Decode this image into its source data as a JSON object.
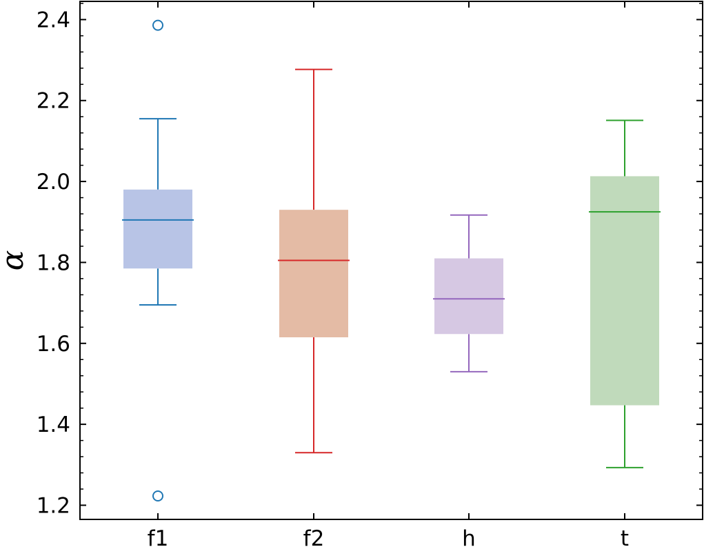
{
  "chart_data": {
    "type": "box",
    "ylabel": "α",
    "xlabel": "",
    "ylim": [
      1.165,
      2.445
    ],
    "y_ticks": [
      "1.2",
      "1.4",
      "1.6",
      "1.8",
      "2.0",
      "2.2",
      "2.4"
    ],
    "y_minor_step": 0.04,
    "grid": false,
    "categories": [
      "f1",
      "f2",
      "h",
      "t"
    ],
    "boxes": [
      {
        "category": "f1",
        "whisker_low": 1.695,
        "q1": 1.785,
        "median": 1.905,
        "q3": 1.98,
        "whisker_high": 2.155,
        "outliers": [
          2.386,
          1.223
        ],
        "color": "#1f77b4",
        "fill": "#b8c4e6"
      },
      {
        "category": "f2",
        "whisker_low": 1.33,
        "q1": 1.615,
        "median": 1.805,
        "q3": 1.93,
        "whisker_high": 2.277,
        "outliers": [],
        "color": "#d62728",
        "fill": "#e4bba5"
      },
      {
        "category": "h",
        "whisker_low": 1.53,
        "q1": 1.623,
        "median": 1.71,
        "q3": 1.81,
        "whisker_high": 1.917,
        "outliers": [],
        "color": "#9467bd",
        "fill": "#d6c8e3"
      },
      {
        "category": "t",
        "whisker_low": 1.293,
        "q1": 1.447,
        "median": 1.925,
        "q3": 2.013,
        "whisker_high": 2.151,
        "outliers": [],
        "color": "#2ca02c",
        "fill": "#c0dabb"
      }
    ]
  }
}
